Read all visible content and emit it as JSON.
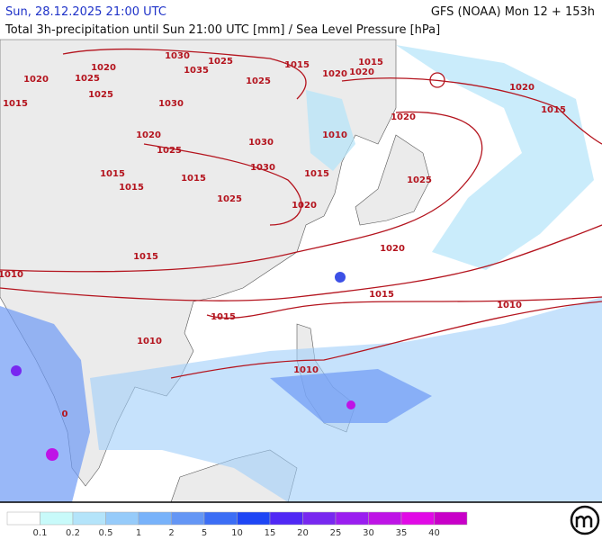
{
  "header": {
    "valid_time": "Sun, 28.12.2025 21:00 UTC",
    "model_run": "GFS (NOAA) Mon 12 + 153h",
    "parameter": "Total 3h-precipitation until Sun 21:00 UTC [mm] / Sea Level Pressure [hPa]"
  },
  "isobar_labels": [
    "1020",
    "1020",
    "1025",
    "1025",
    "1015",
    "1030",
    "1035",
    "1025",
    "1030",
    "1025",
    "1015",
    "1020",
    "1020",
    "1015",
    "1020",
    "1015",
    "1020",
    "1010",
    "1020",
    "1025",
    "1030",
    "1030",
    "1015",
    "1015",
    "1015",
    "1015",
    "1025",
    "1020",
    "1025",
    "1020",
    "1010",
    "1015",
    "1015",
    "1010",
    "1015",
    "1010",
    "1010",
    "0"
  ],
  "legend": {
    "labels": [
      "0.1",
      "0.2",
      "0.5",
      "1",
      "2",
      "5",
      "10",
      "15",
      "20",
      "25",
      "30",
      "35",
      "40"
    ],
    "colors": [
      "#ffffff",
      "#c8fafa",
      "#b4e4fa",
      "#96cbfa",
      "#78b2fa",
      "#6496f5",
      "#3c6ef5",
      "#1e46f5",
      "#5028f5",
      "#7828f0",
      "#9a1ef0",
      "#be14e6",
      "#e10ae6",
      "#c800c8"
    ]
  }
}
